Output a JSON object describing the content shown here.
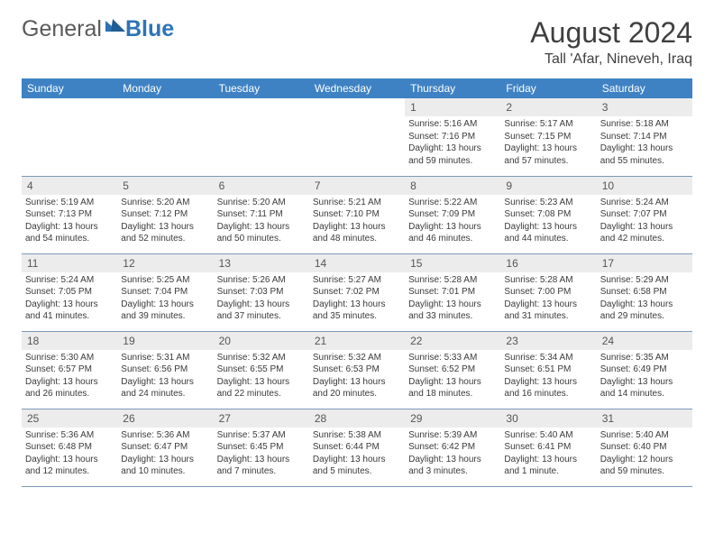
{
  "logo": {
    "general": "General",
    "blue": "Blue"
  },
  "title": "August 2024",
  "subtitle": "Tall 'Afar, Nineveh, Iraq",
  "colors": {
    "header_bg": "#3e82c4",
    "header_text": "#ffffff",
    "daynum_bg": "#ececec",
    "cell_border": "#7a98b8",
    "title_color": "#3f3f3f",
    "body_text": "#3a3a3a",
    "logo_gray": "#5a5a5a",
    "logo_blue": "#2d73b8"
  },
  "typography": {
    "title_fontsize": 32,
    "subtitle_fontsize": 16,
    "th_fontsize": 12,
    "daynum_fontsize": 12,
    "cell_fontsize": 10
  },
  "day_headers": [
    "Sunday",
    "Monday",
    "Tuesday",
    "Wednesday",
    "Thursday",
    "Friday",
    "Saturday"
  ],
  "weeks": [
    [
      {
        "empty": true
      },
      {
        "empty": true
      },
      {
        "empty": true
      },
      {
        "empty": true
      },
      {
        "day": "1",
        "sunrise": "Sunrise: 5:16 AM",
        "sunset": "Sunset: 7:16 PM",
        "daylight": "Daylight: 13 hours and 59 minutes."
      },
      {
        "day": "2",
        "sunrise": "Sunrise: 5:17 AM",
        "sunset": "Sunset: 7:15 PM",
        "daylight": "Daylight: 13 hours and 57 minutes."
      },
      {
        "day": "3",
        "sunrise": "Sunrise: 5:18 AM",
        "sunset": "Sunset: 7:14 PM",
        "daylight": "Daylight: 13 hours and 55 minutes."
      }
    ],
    [
      {
        "day": "4",
        "sunrise": "Sunrise: 5:19 AM",
        "sunset": "Sunset: 7:13 PM",
        "daylight": "Daylight: 13 hours and 54 minutes."
      },
      {
        "day": "5",
        "sunrise": "Sunrise: 5:20 AM",
        "sunset": "Sunset: 7:12 PM",
        "daylight": "Daylight: 13 hours and 52 minutes."
      },
      {
        "day": "6",
        "sunrise": "Sunrise: 5:20 AM",
        "sunset": "Sunset: 7:11 PM",
        "daylight": "Daylight: 13 hours and 50 minutes."
      },
      {
        "day": "7",
        "sunrise": "Sunrise: 5:21 AM",
        "sunset": "Sunset: 7:10 PM",
        "daylight": "Daylight: 13 hours and 48 minutes."
      },
      {
        "day": "8",
        "sunrise": "Sunrise: 5:22 AM",
        "sunset": "Sunset: 7:09 PM",
        "daylight": "Daylight: 13 hours and 46 minutes."
      },
      {
        "day": "9",
        "sunrise": "Sunrise: 5:23 AM",
        "sunset": "Sunset: 7:08 PM",
        "daylight": "Daylight: 13 hours and 44 minutes."
      },
      {
        "day": "10",
        "sunrise": "Sunrise: 5:24 AM",
        "sunset": "Sunset: 7:07 PM",
        "daylight": "Daylight: 13 hours and 42 minutes."
      }
    ],
    [
      {
        "day": "11",
        "sunrise": "Sunrise: 5:24 AM",
        "sunset": "Sunset: 7:05 PM",
        "daylight": "Daylight: 13 hours and 41 minutes."
      },
      {
        "day": "12",
        "sunrise": "Sunrise: 5:25 AM",
        "sunset": "Sunset: 7:04 PM",
        "daylight": "Daylight: 13 hours and 39 minutes."
      },
      {
        "day": "13",
        "sunrise": "Sunrise: 5:26 AM",
        "sunset": "Sunset: 7:03 PM",
        "daylight": "Daylight: 13 hours and 37 minutes."
      },
      {
        "day": "14",
        "sunrise": "Sunrise: 5:27 AM",
        "sunset": "Sunset: 7:02 PM",
        "daylight": "Daylight: 13 hours and 35 minutes."
      },
      {
        "day": "15",
        "sunrise": "Sunrise: 5:28 AM",
        "sunset": "Sunset: 7:01 PM",
        "daylight": "Daylight: 13 hours and 33 minutes."
      },
      {
        "day": "16",
        "sunrise": "Sunrise: 5:28 AM",
        "sunset": "Sunset: 7:00 PM",
        "daylight": "Daylight: 13 hours and 31 minutes."
      },
      {
        "day": "17",
        "sunrise": "Sunrise: 5:29 AM",
        "sunset": "Sunset: 6:58 PM",
        "daylight": "Daylight: 13 hours and 29 minutes."
      }
    ],
    [
      {
        "day": "18",
        "sunrise": "Sunrise: 5:30 AM",
        "sunset": "Sunset: 6:57 PM",
        "daylight": "Daylight: 13 hours and 26 minutes."
      },
      {
        "day": "19",
        "sunrise": "Sunrise: 5:31 AM",
        "sunset": "Sunset: 6:56 PM",
        "daylight": "Daylight: 13 hours and 24 minutes."
      },
      {
        "day": "20",
        "sunrise": "Sunrise: 5:32 AM",
        "sunset": "Sunset: 6:55 PM",
        "daylight": "Daylight: 13 hours and 22 minutes."
      },
      {
        "day": "21",
        "sunrise": "Sunrise: 5:32 AM",
        "sunset": "Sunset: 6:53 PM",
        "daylight": "Daylight: 13 hours and 20 minutes."
      },
      {
        "day": "22",
        "sunrise": "Sunrise: 5:33 AM",
        "sunset": "Sunset: 6:52 PM",
        "daylight": "Daylight: 13 hours and 18 minutes."
      },
      {
        "day": "23",
        "sunrise": "Sunrise: 5:34 AM",
        "sunset": "Sunset: 6:51 PM",
        "daylight": "Daylight: 13 hours and 16 minutes."
      },
      {
        "day": "24",
        "sunrise": "Sunrise: 5:35 AM",
        "sunset": "Sunset: 6:49 PM",
        "daylight": "Daylight: 13 hours and 14 minutes."
      }
    ],
    [
      {
        "day": "25",
        "sunrise": "Sunrise: 5:36 AM",
        "sunset": "Sunset: 6:48 PM",
        "daylight": "Daylight: 13 hours and 12 minutes."
      },
      {
        "day": "26",
        "sunrise": "Sunrise: 5:36 AM",
        "sunset": "Sunset: 6:47 PM",
        "daylight": "Daylight: 13 hours and 10 minutes."
      },
      {
        "day": "27",
        "sunrise": "Sunrise: 5:37 AM",
        "sunset": "Sunset: 6:45 PM",
        "daylight": "Daylight: 13 hours and 7 minutes."
      },
      {
        "day": "28",
        "sunrise": "Sunrise: 5:38 AM",
        "sunset": "Sunset: 6:44 PM",
        "daylight": "Daylight: 13 hours and 5 minutes."
      },
      {
        "day": "29",
        "sunrise": "Sunrise: 5:39 AM",
        "sunset": "Sunset: 6:42 PM",
        "daylight": "Daylight: 13 hours and 3 minutes."
      },
      {
        "day": "30",
        "sunrise": "Sunrise: 5:40 AM",
        "sunset": "Sunset: 6:41 PM",
        "daylight": "Daylight: 13 hours and 1 minute."
      },
      {
        "day": "31",
        "sunrise": "Sunrise: 5:40 AM",
        "sunset": "Sunset: 6:40 PM",
        "daylight": "Daylight: 12 hours and 59 minutes."
      }
    ]
  ]
}
